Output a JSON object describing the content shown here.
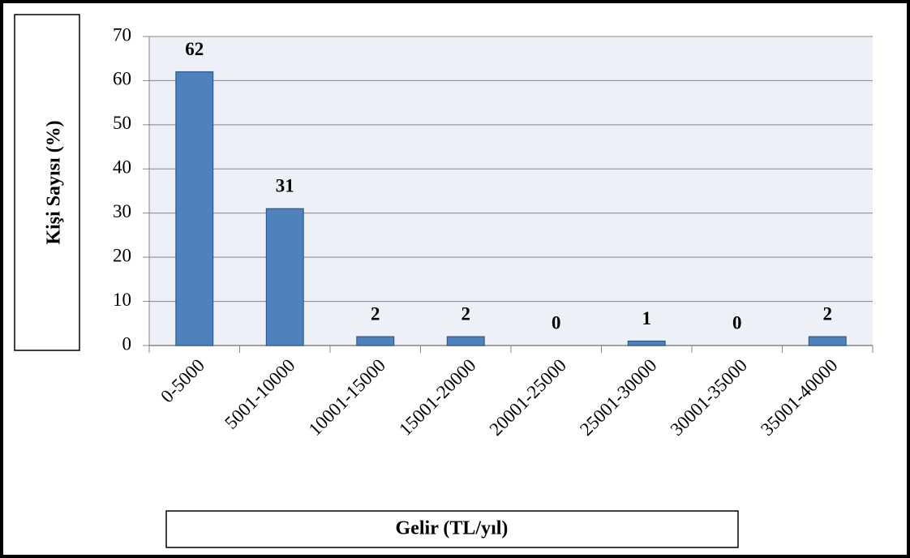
{
  "chart_data": {
    "type": "bar",
    "xlabel": "Gelir (TL/yıl)",
    "ylabel": "Kişi Sayısı (%)",
    "categories": [
      "0-5000",
      "5001-10000",
      "10001-15000",
      "15001-20000",
      "20001-25000",
      "25001-30000",
      "30001-35000",
      "35001-40000"
    ],
    "values": [
      62,
      31,
      2,
      2,
      0,
      1,
      0,
      2
    ],
    "color": "#4f81bd",
    "ylim": [
      0,
      70
    ],
    "yticks": [
      0,
      10,
      20,
      30,
      40,
      50,
      60,
      70
    ],
    "grid": true
  }
}
